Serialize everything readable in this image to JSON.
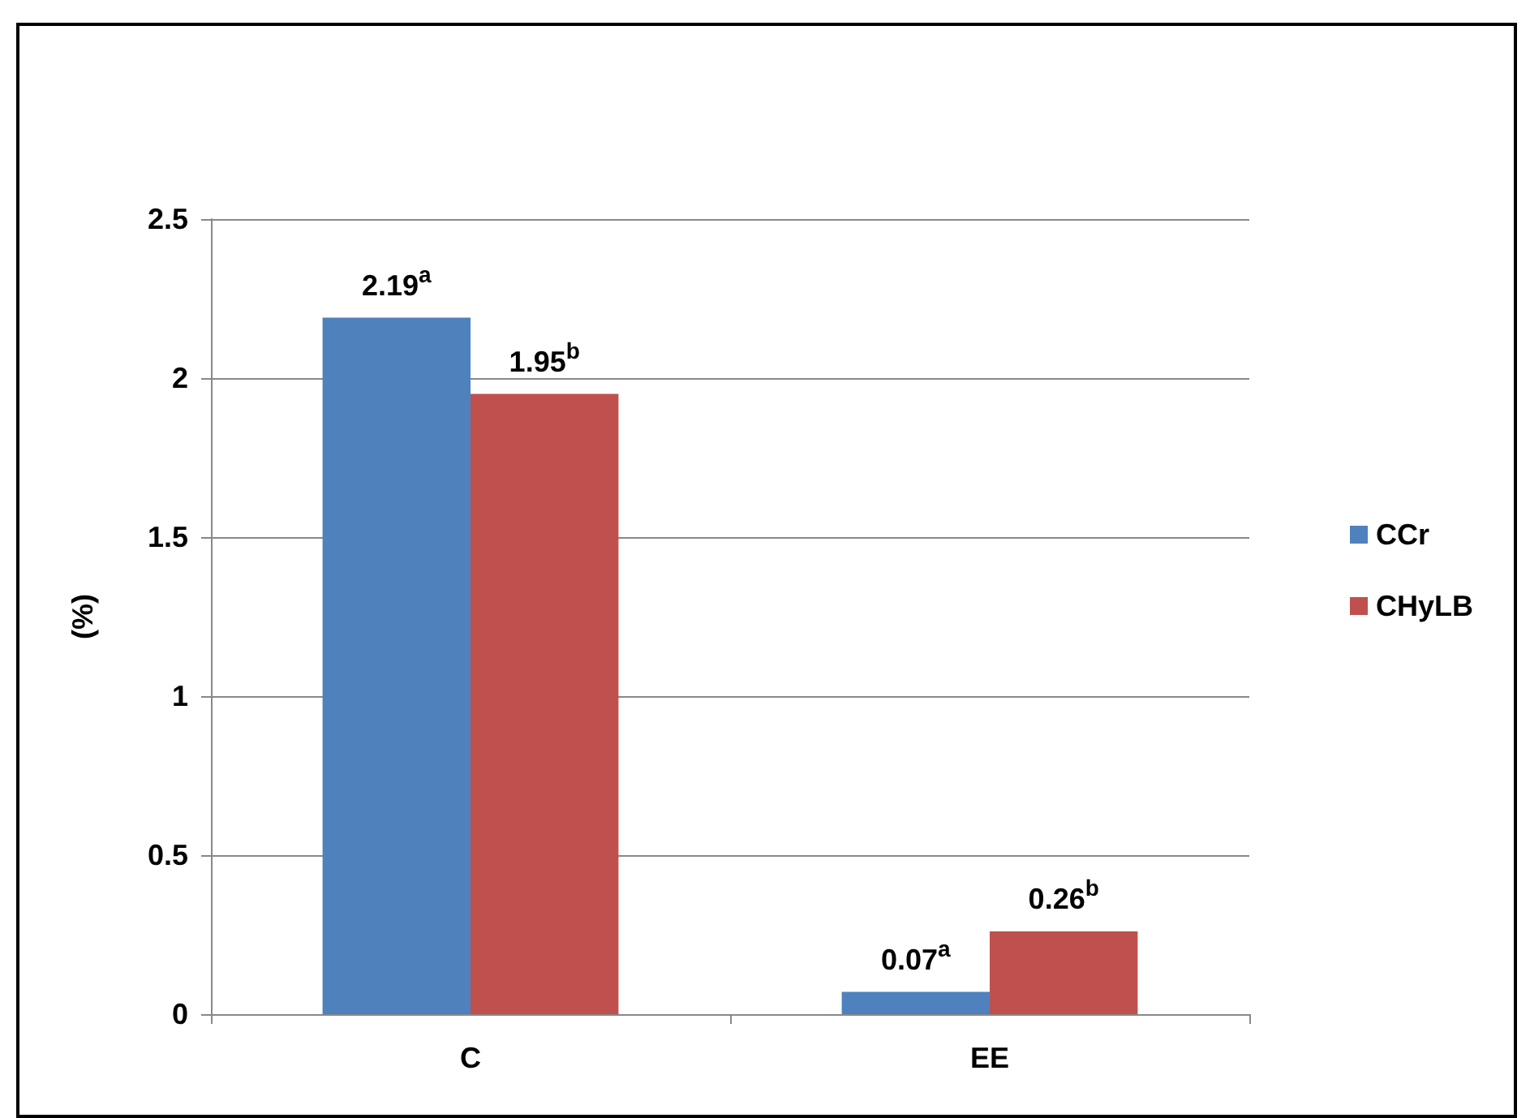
{
  "chart_data": {
    "type": "bar",
    "ylabel": "(%)",
    "categories": [
      "C",
      "EE"
    ],
    "series": [
      {
        "name": "CCr",
        "color": "#4f81bd",
        "values": [
          2.19,
          0.07
        ],
        "value_labels": [
          "2.19$^{a}$",
          "0.07$^{a}$"
        ]
      },
      {
        "name": "CHyLB",
        "color": "#c0504d",
        "values": [
          1.95,
          0.26
        ],
        "value_labels": [
          "1.95$^{b}$",
          "0.26$^{b}$"
        ]
      }
    ],
    "ylim": [
      0,
      2.5
    ],
    "yticks": [
      0,
      0.5,
      1,
      1.5,
      2,
      2.5
    ],
    "grid": "y",
    "legend": "right"
  }
}
